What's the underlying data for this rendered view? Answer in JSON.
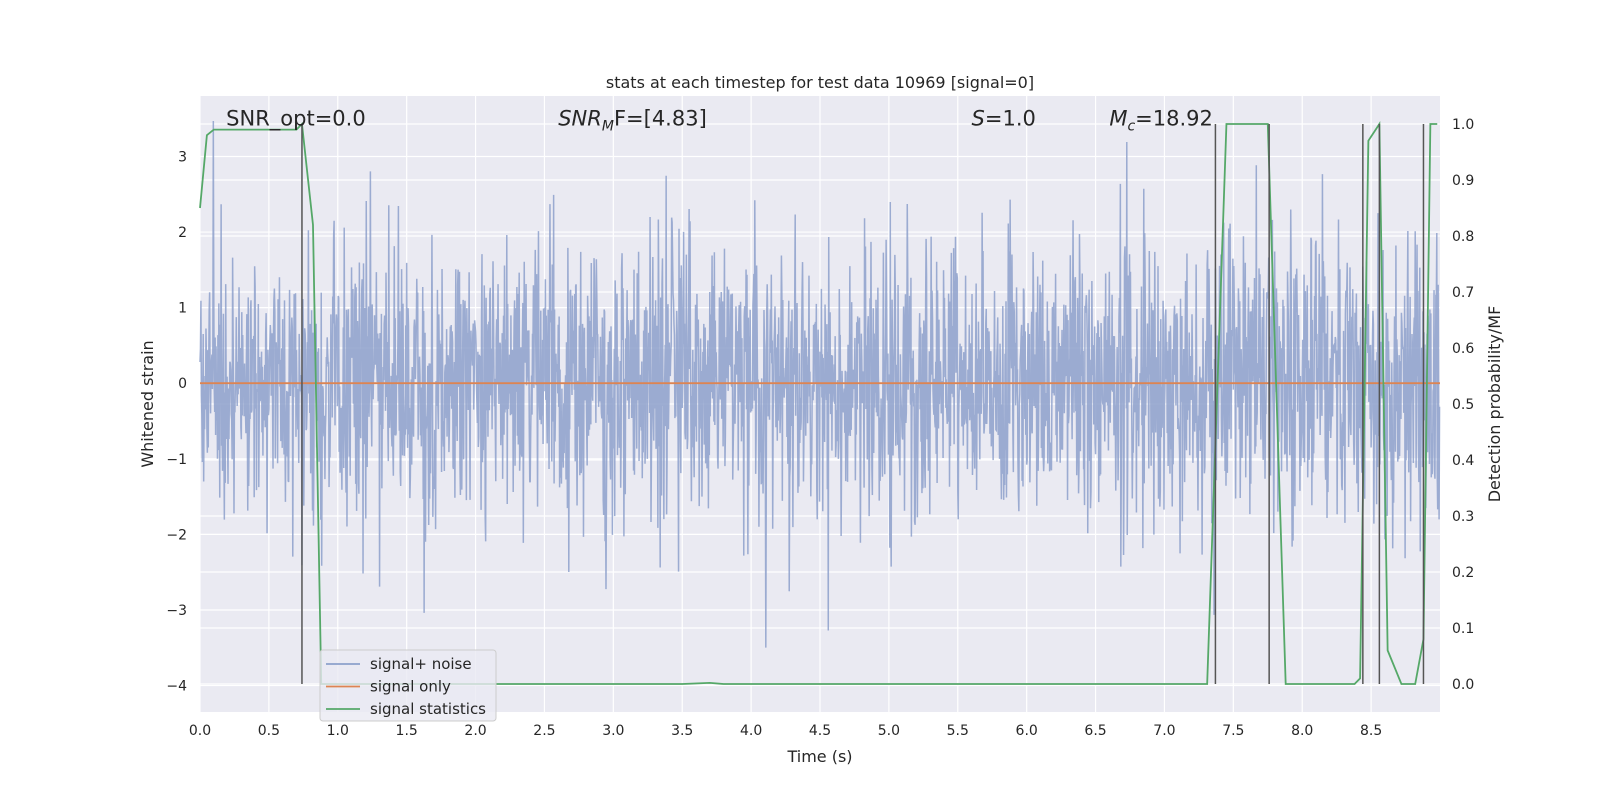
{
  "chart_data": {
    "type": "line",
    "title": "stats at each timestep for test data 10969 [signal=0]",
    "xlabel": "Time (s)",
    "ylabel": "Whitened strain",
    "ylabel_right": "Detection probability/MF",
    "xlim": [
      0.0,
      9.0
    ],
    "ylim": [
      -4.35,
      3.8
    ],
    "ylim_right": [
      -0.05,
      1.05
    ],
    "x_ticks": [
      "0.0",
      "0.5",
      "1.0",
      "1.5",
      "2.0",
      "2.5",
      "3.0",
      "3.5",
      "4.0",
      "4.5",
      "5.0",
      "5.5",
      "6.0",
      "6.5",
      "7.0",
      "7.5",
      "8.0",
      "8.5"
    ],
    "y_ticks": [
      "3",
      "2",
      "1",
      "0",
      "−1",
      "−2",
      "−3",
      "−4"
    ],
    "y_ticks_right": [
      "1.0",
      "0.9",
      "0.8",
      "0.7",
      "0.6",
      "0.5",
      "0.4",
      "0.3",
      "0.2",
      "0.1",
      "0.0"
    ],
    "grid": true,
    "legend_position": "lower-left",
    "annotations": [
      {
        "text": "SNR_opt=0.0",
        "x": 0.19,
        "y": 3.5,
        "style": "normal"
      },
      {
        "text": "SNR",
        "sub": "M",
        "after": "F=[4.83]",
        "x": 2.6,
        "y": 3.5,
        "style": "math"
      },
      {
        "text": "S",
        "sub": "",
        "after": "=1.0",
        "x": 5.6,
        "y": 3.5,
        "style": "math"
      },
      {
        "text": "M",
        "sub": "c",
        "after": "=18.92",
        "x": 6.6,
        "y": 3.5,
        "style": "math"
      }
    ],
    "series": [
      {
        "name": "signal+ noise",
        "color": "#8da0cb",
        "axis": "left",
        "kind": "noise",
        "sample_rate_hz": 300,
        "sigma": 0.9,
        "range": [
          -4.0,
          3.5
        ]
      },
      {
        "name": "signal only",
        "color": "#dd8452",
        "axis": "left",
        "x": [
          0.0,
          9.0
        ],
        "y": [
          0.0,
          0.0
        ]
      },
      {
        "name": "signal statistics",
        "color": "#55a868",
        "axis": "right",
        "x": [
          0.0,
          0.05,
          0.1,
          0.2,
          0.3,
          0.4,
          0.5,
          0.6,
          0.7,
          0.74,
          0.82,
          0.88,
          0.95,
          1.5,
          2.5,
          3.5,
          3.7,
          3.8,
          4.5,
          5.5,
          6.5,
          7.31,
          7.45,
          7.75,
          7.88,
          8.0,
          8.3,
          8.38,
          8.42,
          8.48,
          8.56,
          8.62,
          8.72,
          8.82,
          8.88,
          8.93,
          8.98
        ],
        "y": [
          0.85,
          0.98,
          0.99,
          0.99,
          0.99,
          0.99,
          0.99,
          0.99,
          0.99,
          1.0,
          0.82,
          0.0,
          0.0,
          0.0,
          0.0,
          0.0,
          0.002,
          0.0,
          0.0,
          0.0,
          0.0,
          0.0,
          1.0,
          1.0,
          0.0,
          0.0,
          0.0,
          0.0,
          0.01,
          0.97,
          1.0,
          0.06,
          0.0,
          0.0,
          0.08,
          1.0,
          1.0
        ]
      },
      {
        "name": "",
        "color": "#555555",
        "axis": "right",
        "kind": "vlines",
        "x": [
          0.74,
          7.37,
          7.76,
          8.44,
          8.56,
          8.88
        ],
        "y_range": [
          0.0,
          1.0
        ]
      }
    ]
  }
}
